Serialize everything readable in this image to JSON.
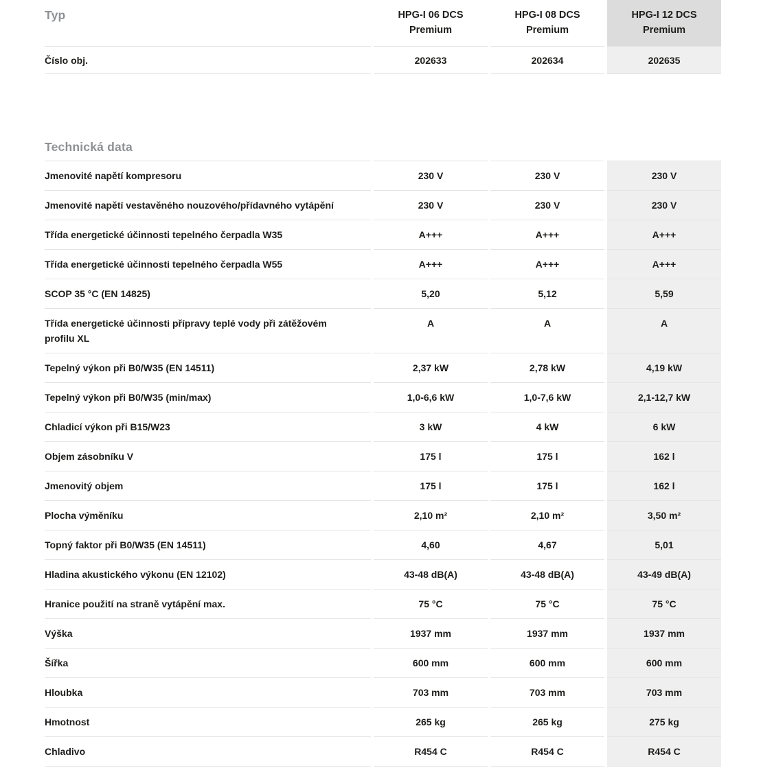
{
  "colors": {
    "text_dark": "#1d1d1b",
    "heading_gray": "#8e9194",
    "row_border": "#e4e4e4",
    "highlight_header_bg": "#dcdcdc",
    "highlight_cell_bg": "#efefef",
    "page_bg": "#ffffff"
  },
  "header_table": {
    "typ_label": "Typ",
    "columns": [
      {
        "line1": "HPG-I 06 DCS",
        "line2": "Premium",
        "highlight": false
      },
      {
        "line1": "HPG-I 08 DCS",
        "line2": "Premium",
        "highlight": false
      },
      {
        "line1": "HPG-I 12 DCS",
        "line2": "Premium",
        "highlight": true
      }
    ],
    "order_row": {
      "label": "Číslo obj.",
      "values": [
        "202633",
        "202634",
        "202635"
      ]
    }
  },
  "section": {
    "title": "Technická data"
  },
  "spec_rows": [
    {
      "label": "Jmenovité napětí kompresoru",
      "values": [
        "230 V",
        "230 V",
        "230 V"
      ]
    },
    {
      "label": "Jmenovité napětí vestavěného nouzového/přídavného vytápění",
      "values": [
        "230 V",
        "230 V",
        "230 V"
      ]
    },
    {
      "label": "Třída energetické účinnosti tepelného čerpadla W35",
      "values": [
        "A+++",
        "A+++",
        "A+++"
      ]
    },
    {
      "label": "Třída energetické účinnosti tepelného čerpadla W55",
      "values": [
        "A+++",
        "A+++",
        "A+++"
      ]
    },
    {
      "label": "SCOP 35 °C (EN 14825)",
      "values": [
        "5,20",
        "5,12",
        "5,59"
      ]
    },
    {
      "label": "Třída energetické účinnosti přípravy teplé vody při zátěžovém\nprofilu XL",
      "values": [
        "A",
        "A",
        "A"
      ]
    },
    {
      "label": "Tepelný výkon při B0/W35 (EN 14511)",
      "values": [
        "2,37 kW",
        "2,78 kW",
        "4,19 kW"
      ]
    },
    {
      "label": "Tepelný výkon při B0/W35 (min/max)",
      "values": [
        "1,0-6,6 kW",
        "1,0-7,6 kW",
        "2,1-12,7 kW"
      ]
    },
    {
      "label": "Chladicí výkon při B15/W23",
      "values": [
        "3 kW",
        "4 kW",
        "6 kW"
      ]
    },
    {
      "label": "Objem zásobníku V",
      "values": [
        "175 l",
        "175 l",
        "162 l"
      ]
    },
    {
      "label": "Jmenovitý objem",
      "values": [
        "175 l",
        "175 l",
        "162 l"
      ]
    },
    {
      "label": "Plocha výměníku",
      "values": [
        "2,10 m²",
        "2,10 m²",
        "3,50 m²"
      ]
    },
    {
      "label": "Topný faktor při B0/W35 (EN 14511)",
      "values": [
        "4,60",
        "4,67",
        "5,01"
      ]
    },
    {
      "label": "Hladina akustického výkonu (EN 12102)",
      "values": [
        "43-48 dB(A)",
        "43-48 dB(A)",
        "43-49 dB(A)"
      ]
    },
    {
      "label": "Hranice použití na straně vytápění max.",
      "values": [
        "75 °C",
        "75 °C",
        "75 °C"
      ]
    },
    {
      "label": "Výška",
      "values": [
        "1937 mm",
        "1937 mm",
        "1937 mm"
      ]
    },
    {
      "label": "Šířka",
      "values": [
        "600 mm",
        "600 mm",
        "600 mm"
      ]
    },
    {
      "label": "Hloubka",
      "values": [
        "703 mm",
        "703 mm",
        "703 mm"
      ]
    },
    {
      "label": "Hmotnost",
      "values": [
        "265 kg",
        "265 kg",
        "275 kg"
      ]
    },
    {
      "label": "Chladivo",
      "values": [
        "R454 C",
        "R454 C",
        "R454 C"
      ]
    }
  ]
}
